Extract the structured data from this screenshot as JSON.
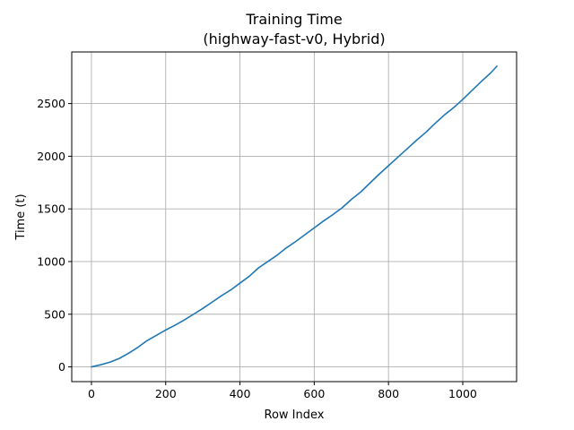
{
  "chart_data": {
    "type": "line",
    "title": "Training Time",
    "subtitle": "(highway-fast-v0, Hybrid)",
    "xlabel": "Row Index",
    "ylabel": "Time (t)",
    "xlim": [
      -53,
      1145
    ],
    "ylim": [
      -140,
      2990
    ],
    "xticks": [
      0,
      200,
      400,
      600,
      800,
      1000
    ],
    "yticks": [
      0,
      500,
      1000,
      1500,
      2000,
      2500
    ],
    "grid": true,
    "series": [
      {
        "color": "#1f77b4",
        "points": [
          [
            0,
            0
          ],
          [
            25,
            20
          ],
          [
            50,
            45
          ],
          [
            75,
            80
          ],
          [
            100,
            130
          ],
          [
            125,
            185
          ],
          [
            150,
            250
          ],
          [
            175,
            300
          ],
          [
            200,
            350
          ],
          [
            225,
            395
          ],
          [
            250,
            445
          ],
          [
            275,
            500
          ],
          [
            300,
            555
          ],
          [
            325,
            615
          ],
          [
            350,
            675
          ],
          [
            375,
            730
          ],
          [
            400,
            795
          ],
          [
            425,
            860
          ],
          [
            450,
            940
          ],
          [
            475,
            1000
          ],
          [
            500,
            1060
          ],
          [
            525,
            1130
          ],
          [
            550,
            1190
          ],
          [
            575,
            1255
          ],
          [
            600,
            1320
          ],
          [
            625,
            1385
          ],
          [
            650,
            1445
          ],
          [
            675,
            1510
          ],
          [
            700,
            1590
          ],
          [
            725,
            1660
          ],
          [
            750,
            1745
          ],
          [
            775,
            1830
          ],
          [
            800,
            1910
          ],
          [
            825,
            1990
          ],
          [
            850,
            2070
          ],
          [
            875,
            2150
          ],
          [
            900,
            2225
          ],
          [
            925,
            2310
          ],
          [
            950,
            2390
          ],
          [
            975,
            2460
          ],
          [
            1000,
            2540
          ],
          [
            1025,
            2625
          ],
          [
            1050,
            2710
          ],
          [
            1075,
            2790
          ],
          [
            1092,
            2855
          ]
        ]
      }
    ]
  }
}
